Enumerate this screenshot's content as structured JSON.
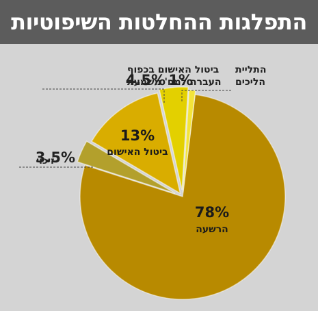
{
  "title": "התפלגות ההחלטות השיפוטיות",
  "colors": {
    "title_bg": "#5c5c5c",
    "background": "#d4d4d4"
  },
  "chart_data": {
    "type": "pie",
    "title": "התפלגות ההחלטות השיפוטיות",
    "slices": [
      {
        "label": "הרשעה",
        "label_lines": [
          "הרשעה"
        ],
        "value": 78,
        "value_label": "78%",
        "color": "#b88a00"
      },
      {
        "label": "זיכוי",
        "label_lines": [
          "זיכוי"
        ],
        "value": 3.5,
        "value_label": "3.5%",
        "color": "#b3a02c"
      },
      {
        "label": "ביטול האישום",
        "label_lines": [
          "ביטול האישום"
        ],
        "value": 13,
        "value_label": "13%",
        "color": "#d9ad00"
      },
      {
        "label": "ביטול האישום בכפוף העברה למח' משמעת",
        "label_lines": [
          "ביטול האישום בכפוף",
          "העברה למח' משמעת"
        ],
        "value": 4.5,
        "value_label": "4.5%",
        "color": "#e3d000"
      },
      {
        "label": "התליית הליכים",
        "label_lines": [
          "התליית",
          "הליכים"
        ],
        "value": 1,
        "value_label": "1%",
        "color": "#f3e43a"
      }
    ]
  }
}
